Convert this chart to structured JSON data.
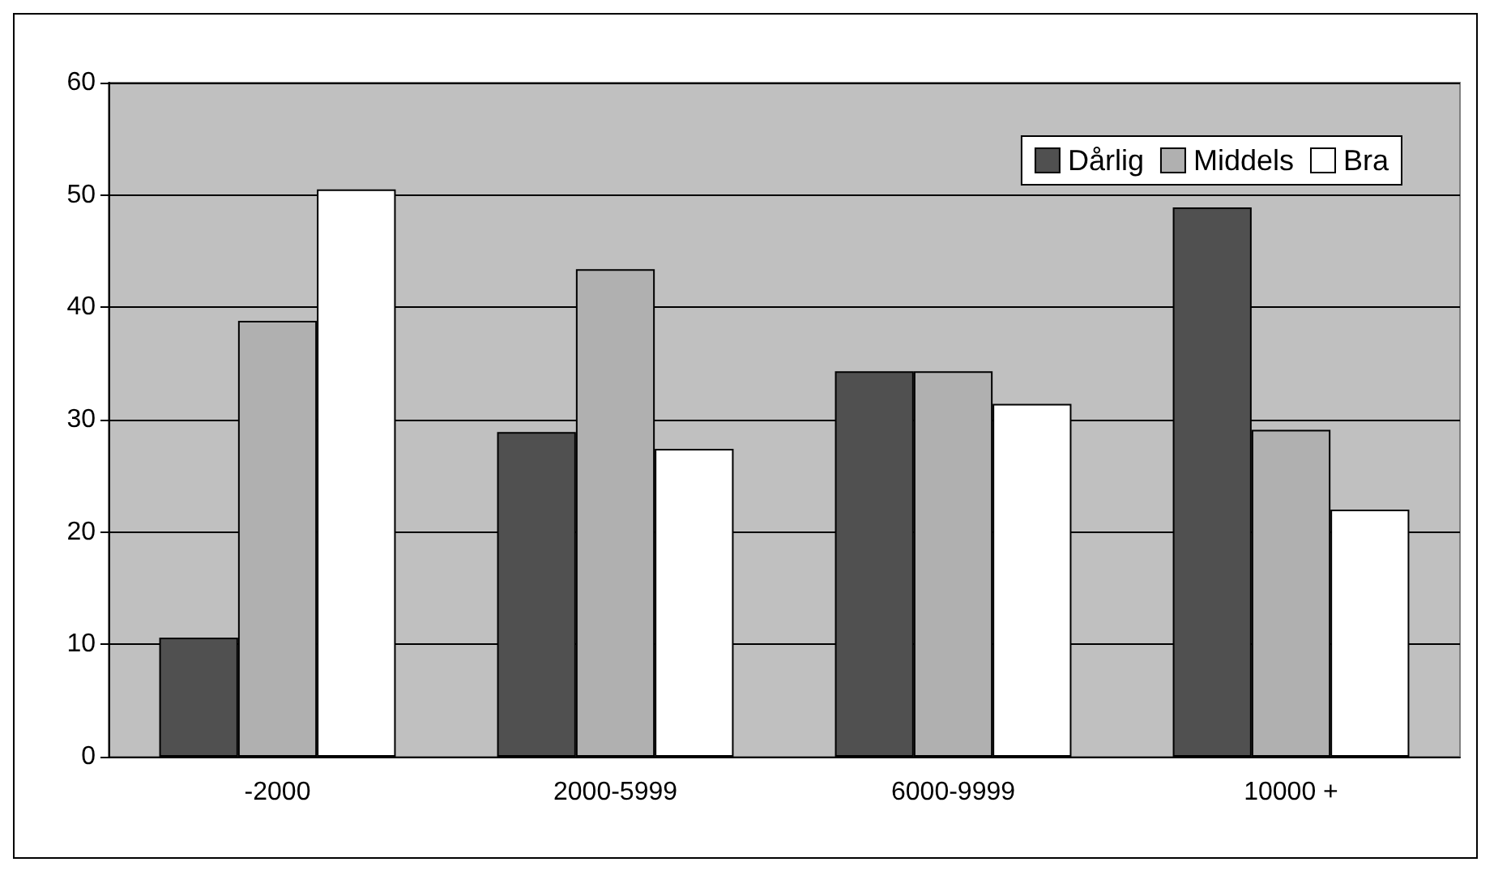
{
  "chart_data": {
    "type": "bar",
    "categories": [
      "-2000",
      "2000-5999",
      "6000-9999",
      "10000 +"
    ],
    "series": [
      {
        "name": "Dårlig",
        "color": "#505050",
        "values": [
          10.6,
          28.9,
          34.3,
          48.9
        ]
      },
      {
        "name": "Middels",
        "color": "#b0b0b0",
        "values": [
          38.8,
          43.4,
          34.3,
          29.1
        ]
      },
      {
        "name": "Bra",
        "color": "#ffffff",
        "values": [
          50.5,
          27.4,
          31.4,
          22.0
        ]
      }
    ],
    "ylim": [
      0,
      60
    ],
    "yticks": [
      0,
      10,
      20,
      30,
      40,
      50,
      60
    ],
    "grid": "y",
    "legend": "top right"
  }
}
